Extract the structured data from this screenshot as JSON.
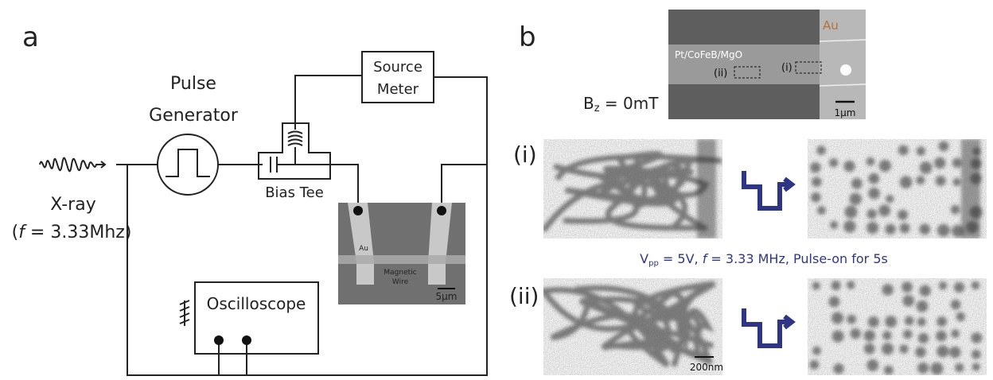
{
  "panel_a": {
    "label": "a",
    "pulse_generator": [
      "Pulse",
      "Generator"
    ],
    "source_meter": [
      "Source",
      "Meter"
    ],
    "bias_tee": "Bias Tee",
    "xray": {
      "label": "X-ray",
      "freq": {
        "open": "(",
        "symbol": "f",
        "rest": " = 3.33Mhz)"
      }
    },
    "oscilloscope": "Oscilloscope",
    "micrograph": {
      "electrode": "Au",
      "wire": [
        "Magnetic",
        "Wire"
      ],
      "scale": "5μm"
    }
  },
  "panel_b": {
    "label": "b",
    "field": {
      "symbol": "B",
      "sub": "z",
      "rest": " = 0mT"
    },
    "sem": {
      "electrode": "Au",
      "stack": "Pt/CoFeB/MgO",
      "region_ii": "(ii)",
      "region_i": "(i)",
      "scale": "1μm"
    },
    "row_i": "(i)",
    "row_ii": "(ii)",
    "pulse": {
      "symbol": "V",
      "sub": "pp",
      "mid": " = 5V, ",
      "f": "f",
      "rest": " = 3.33 MHz, Pulse-on for 5s"
    },
    "scale": "200nm"
  }
}
